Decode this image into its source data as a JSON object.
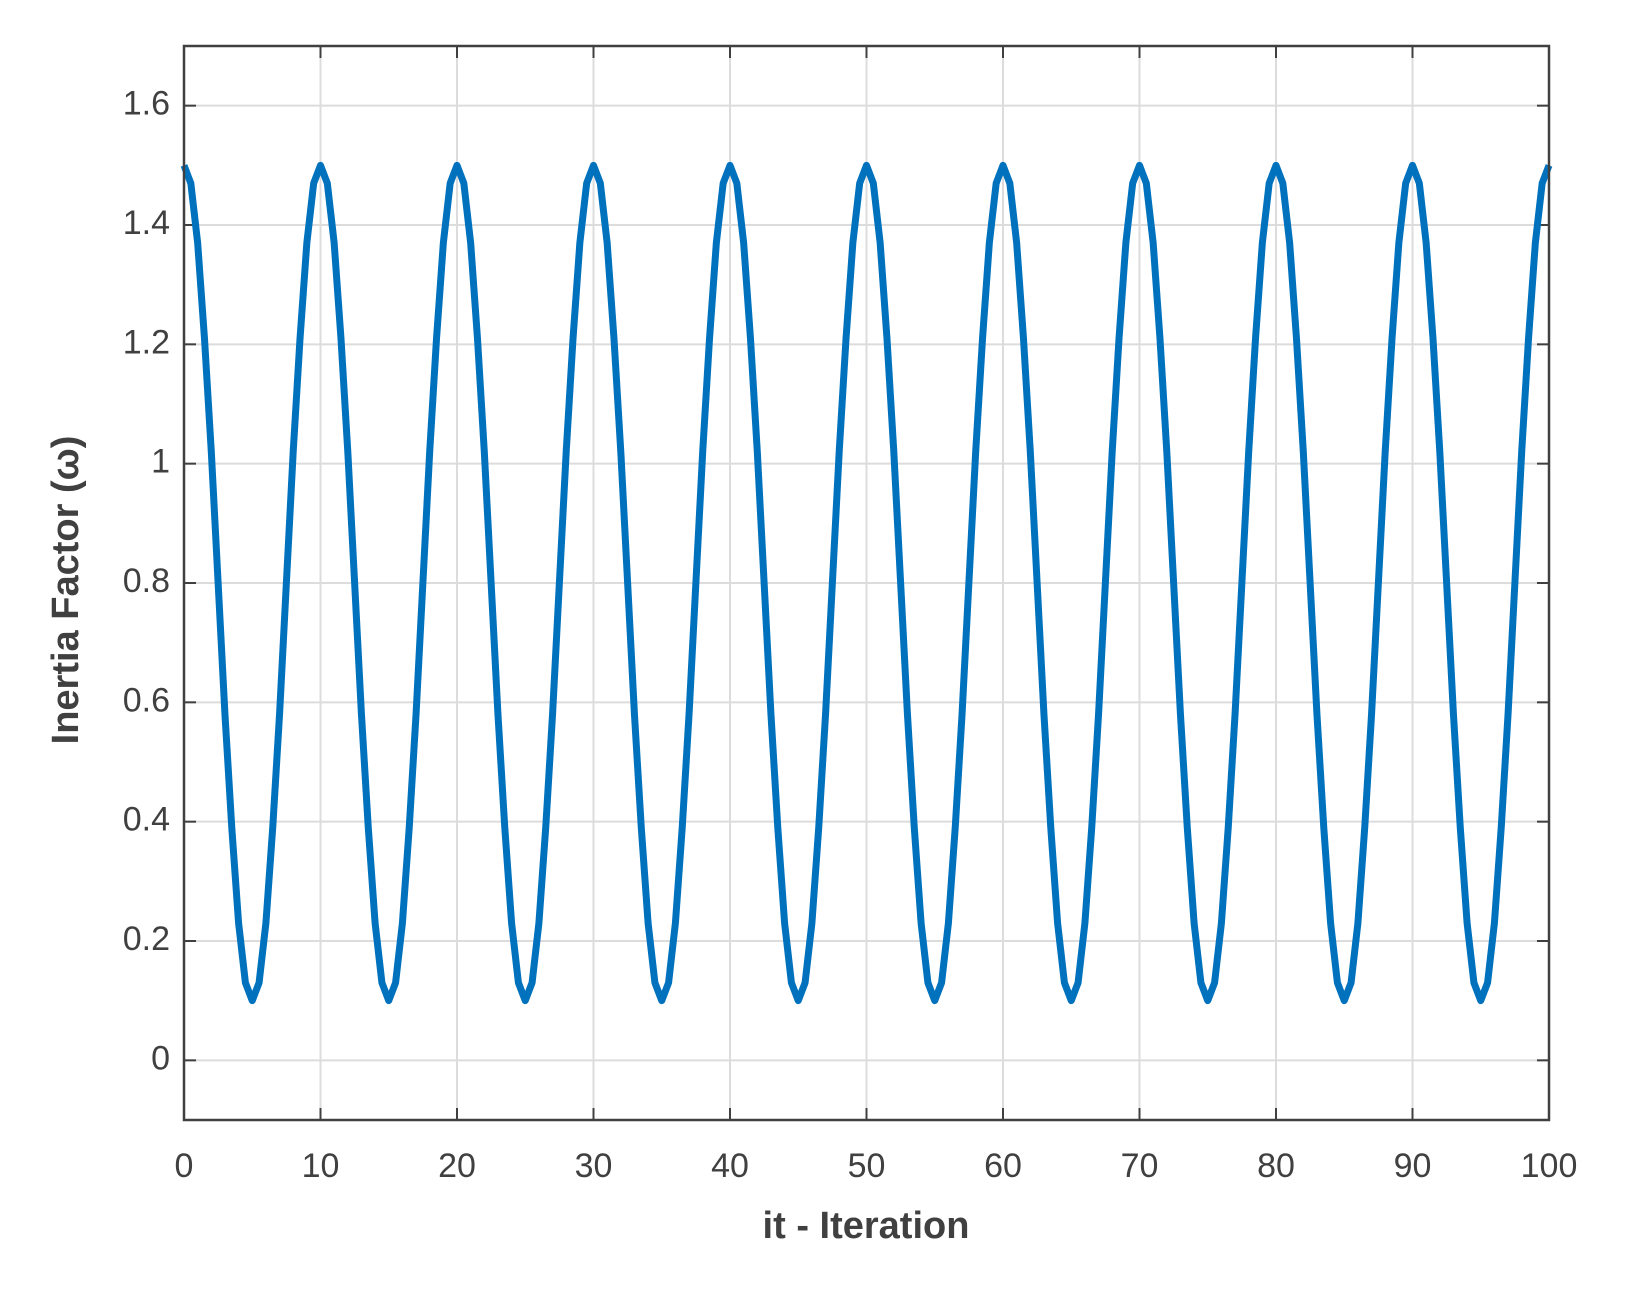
{
  "chart_data": {
    "type": "line",
    "x_label": "it - Iteration",
    "y_label": "Inertia Factor (ω)",
    "xlim": [
      0,
      100
    ],
    "xticks": [
      0,
      10,
      20,
      30,
      40,
      50,
      60,
      70,
      80,
      90,
      100
    ],
    "ylim": [
      -0.1,
      1.7
    ],
    "yticks": [
      0,
      0.2,
      0.4,
      0.6,
      0.8,
      1,
      1.2,
      1.4,
      1.6
    ],
    "grid": true,
    "x": [
      0,
      0.5,
      1,
      1.5,
      2,
      2.5,
      3,
      3.5,
      4,
      4.5,
      5,
      5.5,
      6,
      6.5,
      7,
      7.5,
      8,
      8.5,
      9,
      9.5,
      10,
      10.5,
      11,
      11.5,
      12,
      12.5,
      13,
      13.5,
      14,
      14.5,
      15,
      15.5,
      16,
      16.5,
      17,
      17.5,
      18,
      18.5,
      19,
      19.5,
      20,
      20.5,
      21,
      21.5,
      22,
      22.5,
      23,
      23.5,
      24,
      24.5,
      25,
      25.5,
      26,
      26.5,
      27,
      27.5,
      28,
      28.5,
      29,
      29.5,
      30,
      30.5,
      31,
      31.5,
      32,
      32.5,
      33,
      33.5,
      34,
      34.5,
      35,
      35.5,
      36,
      36.5,
      37,
      37.5,
      38,
      38.5,
      39,
      39.5,
      40,
      40.5,
      41,
      41.5,
      42,
      42.5,
      43,
      43.5,
      44,
      44.5,
      45,
      45.5,
      46,
      46.5,
      47,
      47.5,
      48,
      48.5,
      49,
      49.5,
      50,
      50.5,
      51,
      51.5,
      52,
      52.5,
      53,
      53.5,
      54,
      54.5,
      55,
      55.5,
      56,
      56.5,
      57,
      57.5,
      58,
      58.5,
      59,
      59.5,
      60,
      60.5,
      61,
      61.5,
      62,
      62.5,
      63,
      63.5,
      64,
      64.5,
      65,
      65.5,
      66,
      66.5,
      67,
      67.5,
      68,
      68.5,
      69,
      69.5,
      70,
      70.5,
      71,
      71.5,
      72,
      72.5,
      73,
      73.5,
      74,
      74.5,
      75,
      75.5,
      76,
      76.5,
      77,
      77.5,
      78,
      78.5,
      79,
      79.5,
      80,
      80.5,
      81,
      81.5,
      82,
      82.5,
      83,
      83.5,
      84,
      84.5,
      85,
      85.5,
      86,
      86.5,
      87,
      87.5,
      88,
      88.5,
      89,
      89.5,
      90,
      90.5,
      91,
      91.5,
      92,
      92.5,
      93,
      93.5,
      94,
      94.5,
      95,
      95.5,
      96,
      96.5,
      97,
      97.5,
      98,
      98.5,
      99,
      99.5,
      100
    ],
    "series": [
      {
        "color": "#0072bd",
        "values": [
          1.5,
          1.47,
          1.37,
          1.21,
          1.02,
          0.8,
          0.58,
          0.39,
          0.23,
          0.13,
          0.1,
          0.13,
          0.23,
          0.39,
          0.58,
          0.8,
          1.02,
          1.21,
          1.37,
          1.47,
          1.5,
          1.47,
          1.37,
          1.21,
          1.02,
          0.8,
          0.58,
          0.39,
          0.23,
          0.13,
          0.1,
          0.13,
          0.23,
          0.39,
          0.58,
          0.8,
          1.02,
          1.21,
          1.37,
          1.47,
          1.5,
          1.47,
          1.37,
          1.21,
          1.02,
          0.8,
          0.58,
          0.39,
          0.23,
          0.13,
          0.1,
          0.13,
          0.23,
          0.39,
          0.58,
          0.8,
          1.02,
          1.21,
          1.37,
          1.47,
          1.5,
          1.47,
          1.37,
          1.21,
          1.02,
          0.8,
          0.58,
          0.39,
          0.23,
          0.13,
          0.1,
          0.13,
          0.23,
          0.39,
          0.58,
          0.8,
          1.02,
          1.21,
          1.37,
          1.47,
          1.5,
          1.47,
          1.37,
          1.21,
          1.02,
          0.8,
          0.58,
          0.39,
          0.23,
          0.13,
          0.1,
          0.13,
          0.23,
          0.39,
          0.58,
          0.8,
          1.02,
          1.21,
          1.37,
          1.47,
          1.5,
          1.47,
          1.37,
          1.21,
          1.02,
          0.8,
          0.58,
          0.39,
          0.23,
          0.13,
          0.1,
          0.13,
          0.23,
          0.39,
          0.58,
          0.8,
          1.02,
          1.21,
          1.37,
          1.47,
          1.5,
          1.47,
          1.37,
          1.21,
          1.02,
          0.8,
          0.58,
          0.39,
          0.23,
          0.13,
          0.1,
          0.13,
          0.23,
          0.39,
          0.58,
          0.8,
          1.02,
          1.21,
          1.37,
          1.47,
          1.5,
          1.47,
          1.37,
          1.21,
          1.02,
          0.8,
          0.58,
          0.39,
          0.23,
          0.13,
          0.1,
          0.13,
          0.23,
          0.39,
          0.58,
          0.8,
          1.02,
          1.21,
          1.37,
          1.47,
          1.5,
          1.47,
          1.37,
          1.21,
          1.02,
          0.8,
          0.58,
          0.39,
          0.23,
          0.13,
          0.1,
          0.13,
          0.23,
          0.39,
          0.58,
          0.8,
          1.02,
          1.21,
          1.37,
          1.47,
          1.5,
          1.47,
          1.37,
          1.21,
          1.02,
          0.8,
          0.58,
          0.39,
          0.23,
          0.13,
          0.1,
          0.13,
          0.23,
          0.39,
          0.58,
          0.8,
          1.02,
          1.21,
          1.37,
          1.47,
          1.5
        ]
      }
    ]
  }
}
